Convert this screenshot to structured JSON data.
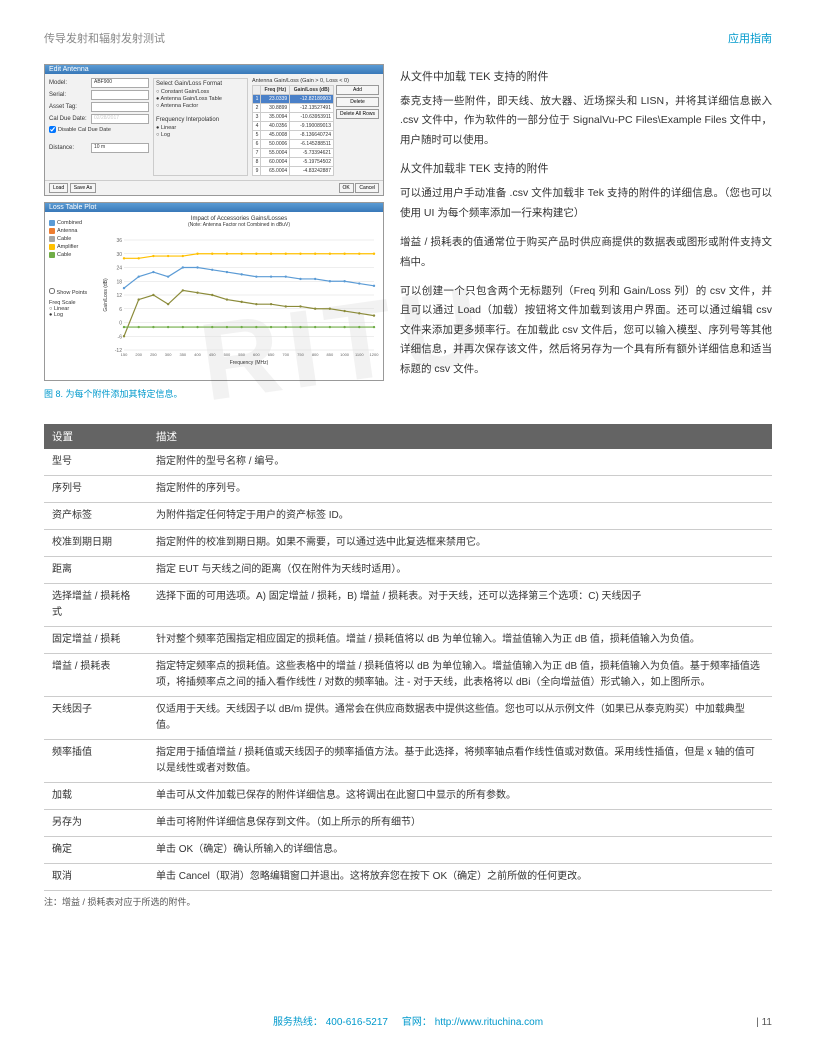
{
  "header": {
    "left": "传导发射和辐射发射测试",
    "right": "应用指南"
  },
  "dialog1": {
    "title": "Edit Antenna",
    "form": {
      "model_lbl": "Model:",
      "model_val": "ABF900",
      "serial_lbl": "Serial:",
      "asset_lbl": "Asset Tag:",
      "cal_lbl": "Cal Due Date:",
      "cal_val": "02/28/2017",
      "disable_lbl": "Disable Cal Due Date",
      "dist_lbl": "Distance:",
      "dist_val": "10 m"
    },
    "gain_section": {
      "title": "Select Gain/Loss Format",
      "opt1": "Constant Gain/Loss",
      "opt2": "Antenna Gain/Loss Table",
      "opt3": "Antenna Factor"
    },
    "freq_section": {
      "title": "Frequency Interpolation",
      "opt1": "Linear",
      "opt2": "Log"
    },
    "table": {
      "title": "Antenna Gain/Loss (Gain > 0, Loss < 0)",
      "headers": [
        "",
        "Freq (Hz)",
        "Gain/Loss (dB)"
      ],
      "rows": [
        [
          "1",
          "23.0339",
          "-12.82189903"
        ],
        [
          "2",
          "30.8899",
          "-12.13527491"
        ],
        [
          "3",
          "35.0094",
          "-10.63953911"
        ],
        [
          "4",
          "40.0356",
          "-9.190089013"
        ],
        [
          "5",
          "45.0008",
          "-8.136640724"
        ],
        [
          "6",
          "50.0006",
          "-6.145288511"
        ],
        [
          "7",
          "55.0004",
          "-5.73394621"
        ],
        [
          "8",
          "60.0004",
          "-5.19754502"
        ],
        [
          "9",
          "65.0004",
          "-4.83242887"
        ]
      ]
    },
    "buttons": {
      "add": "Add",
      "delete": "Delete",
      "delete_all": "Delete All Rows",
      "load": "Load",
      "save": "Save As",
      "ok": "OK",
      "cancel": "Cancel"
    }
  },
  "chart": {
    "title": "Loss Table Plot",
    "caption": "Impact of Accessories Gains/Losses",
    "caption2": "(Note: Antenna Factor not Combined in dBuV)",
    "legend": [
      {
        "label": "Combined",
        "color": "#5b9bd5"
      },
      {
        "label": "Antenna",
        "color": "#ed7d31"
      },
      {
        "label": "Cable",
        "color": "#a5a5a5"
      },
      {
        "label": "Amplifier",
        "color": "#ffc000"
      },
      {
        "label": "Cable",
        "color": "#70ad47"
      }
    ],
    "checkboxes": {
      "points": "Show Points",
      "freq_title": "Freq Scale",
      "linear": "Linear",
      "log": "Log"
    },
    "xlabel": "Frequency (MHz)",
    "ylabel": "Gain/Loss (dB)",
    "xticks": [
      150,
      200,
      250,
      300,
      350,
      400,
      450,
      500,
      550,
      600,
      650,
      700,
      750,
      800,
      850,
      1000,
      1100,
      1200
    ],
    "yticks": [
      -12,
      -6,
      0,
      6,
      12,
      18,
      24,
      30,
      36
    ],
    "series": {
      "yellow": [
        28,
        28,
        29,
        29,
        29,
        30,
        30,
        30,
        30,
        30,
        30,
        30,
        30,
        30,
        30,
        30,
        30,
        30
      ],
      "olive": [
        -6,
        10,
        12,
        8,
        14,
        13,
        12,
        10,
        9,
        8,
        8,
        7,
        7,
        6,
        6,
        5,
        4,
        3
      ],
      "blue": [
        15,
        20,
        22,
        20,
        24,
        24,
        23,
        22,
        21,
        20,
        20,
        20,
        19,
        19,
        18,
        18,
        17,
        16
      ],
      "green": [
        -2,
        -2,
        -2,
        -2,
        -2,
        -2,
        -2,
        -2,
        -2,
        -2,
        -2,
        -2,
        -2,
        -2,
        -2,
        -2,
        -2,
        -2
      ]
    }
  },
  "fig_caption": "图 8. 为每个附件添加其特定信息。",
  "right_text": {
    "t1": "从文件中加载 TEK 支持的附件",
    "p1": "泰克支持一些附件，即天线、放大器、近场探头和 LISN，并将其详细信息嵌入 .csv 文件中，作为软件的一部分位于 SignalVu-PC Files\\Example Files 文件中，用户随时可以使用。",
    "t2": "从文件加载非 TEK 支持的附件",
    "p2": "可以通过用户手动准备 .csv 文件加载非 Tek 支持的附件的详细信息。（您也可以使用 UI 为每个频率添加一行来构建它）",
    "p3": "增益 / 损耗表的值通常位于购买产品时供应商提供的数据表或图形或附件支持文档中。",
    "p4": "可以创建一个只包含两个无标题列（Freq 列和 Gain/Loss 列）的 csv 文件，并且可以通过 Load（加载）按钮将文件加载到该用户界面。还可以通过编辑 csv 文件来添加更多频率行。在加载此 csv 文件后，您可以输入模型、序列号等其他详细信息，并再次保存该文件，然后将另存为一个具有所有额外详细信息和适当标题的 csv 文件。"
  },
  "table": {
    "headers": [
      "设置",
      "描述"
    ],
    "rows": [
      [
        "型号",
        "指定附件的型号名称 / 编号。"
      ],
      [
        "序列号",
        "指定附件的序列号。"
      ],
      [
        "资产标签",
        "为附件指定任何特定于用户的资产标签 ID。"
      ],
      [
        "校准到期日期",
        "指定附件的校准到期日期。如果不需要，可以通过选中此复选框来禁用它。"
      ],
      [
        "距离",
        "指定 EUT 与天线之间的距离（仅在附件为天线时适用）。"
      ],
      [
        "选择增益 / 损耗格式",
        "选择下面的可用选项。A) 固定增益 / 损耗，B) 增益 / 损耗表。对于天线，还可以选择第三个选项：C) 天线因子"
      ],
      [
        "固定增益 / 损耗",
        "针对整个频率范围指定相应固定的损耗值。增益 / 损耗值将以 dB 为单位输入。增益值输入为正 dB 值，损耗值输入为负值。"
      ],
      [
        "增益 / 损耗表",
        "指定特定频率点的损耗值。这些表格中的增益 / 损耗值将以 dB 为单位输入。增益值输入为正 dB 值，损耗值输入为负值。基于频率插值选项，将插频率点之间的插入看作线性 / 对数的频率轴。注 - 对于天线，此表格将以 dBi（全向增益值）形式输入，如上图所示。"
      ],
      [
        "天线因子",
        "仅适用于天线。天线因子以 dB/m 提供。通常会在供应商数据表中提供这些值。您也可以从示例文件（如果已从泰克购买）中加载典型值。"
      ],
      [
        "频率插值",
        "指定用于插值增益 / 损耗值或天线因子的频率插值方法。基于此选择，将频率轴点看作线性值或对数值。采用线性插值，但是 x 轴的值可以是线性或者对数值。"
      ],
      [
        "加载",
        "单击可从文件加载已保存的附件详细信息。这将调出在此窗口中显示的所有参数。"
      ],
      [
        "另存为",
        "单击可将附件详细信息保存到文件。（如上所示的所有细节）"
      ],
      [
        "确定",
        "单击 OK（确定）确认所输入的详细信息。"
      ],
      [
        "取消",
        "单击 Cancel（取消）忽略编辑窗口并退出。这将放弃您在按下 OK（确定）之前所做的任何更改。"
      ]
    ],
    "note": "注：增益 / 损耗表对应于所选的附件。"
  },
  "footer": {
    "hotline": "服务热线：",
    "phone": "400-616-5217",
    "site": "官网：",
    "url": "http://www.rituchina.com",
    "pagenum": "11"
  }
}
